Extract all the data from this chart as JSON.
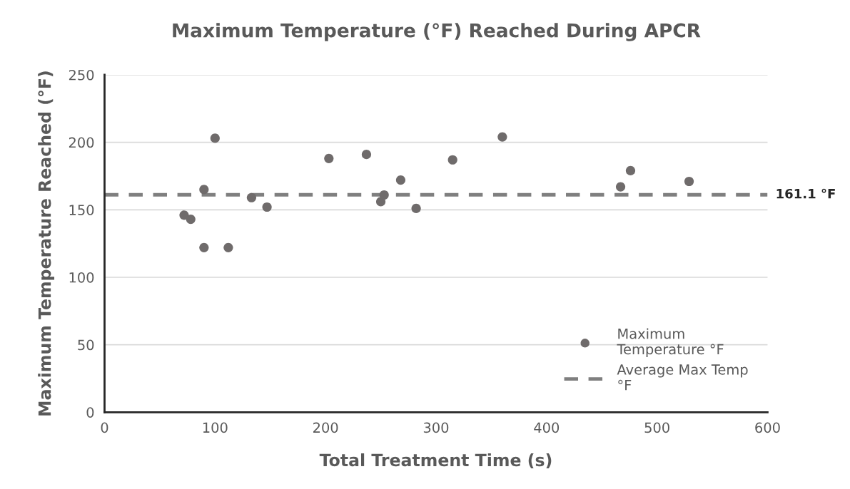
{
  "chart_data": {
    "type": "scatter",
    "title": "Maximum Temperature (°F) Reached During APCR",
    "xlabel": "Total Treatment Time (s)",
    "ylabel": "Maximum Temperature Reached (°F)",
    "xlim": [
      0,
      600
    ],
    "xticks": [
      0,
      100,
      200,
      300,
      400,
      500,
      600
    ],
    "ylim": [
      0,
      250
    ],
    "yticks": [
      0,
      50,
      100,
      150,
      200,
      250
    ],
    "grid": "y",
    "legend": "bottom right",
    "marker": "circle",
    "series": [
      {
        "name": "Maximum Temperature °F",
        "color": "#6f6b6b",
        "x": [
          72,
          78,
          90,
          90,
          100,
          112,
          133,
          147,
          203,
          237,
          250,
          253,
          268,
          282,
          315,
          360,
          467,
          476,
          529
        ],
        "values": [
          146,
          143,
          165,
          122,
          203,
          122,
          159,
          152,
          188,
          191,
          156,
          161,
          172,
          151,
          187,
          204,
          167,
          179,
          171
        ]
      },
      {
        "name": "Average Max Temp °F",
        "type": "line",
        "line_style": "dashed",
        "marker": "none",
        "color": "#7f7f7f",
        "x": [
          0,
          600
        ],
        "values": [
          161.1,
          161.1
        ]
      }
    ],
    "annotations": [
      {
        "text": "161.1 °F",
        "x": 600,
        "y": 161.1
      }
    ]
  }
}
